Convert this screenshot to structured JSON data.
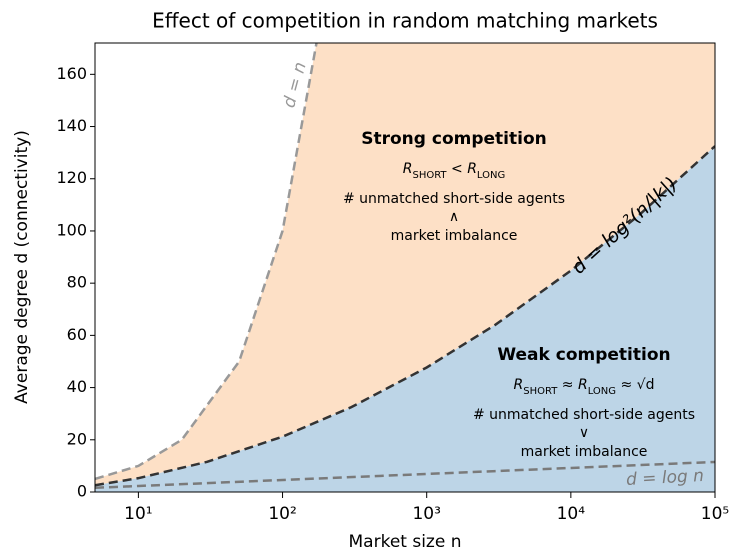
{
  "chart_data": {
    "type": "line",
    "title": "Effect of competition in random matching markets",
    "xlabel": "Market size n",
    "ylabel": "Average degree d (connectivity)",
    "xscale": "log",
    "xlim": [
      5,
      100000
    ],
    "ylim": [
      0,
      172
    ],
    "xticks": [
      {
        "value": 10,
        "label": "10¹"
      },
      {
        "value": 100,
        "label": "10²"
      },
      {
        "value": 1000,
        "label": "10³"
      },
      {
        "value": 10000,
        "label": "10⁴"
      },
      {
        "value": 100000,
        "label": "10⁵"
      }
    ],
    "yticks": [
      0,
      20,
      40,
      60,
      80,
      100,
      120,
      140,
      160
    ],
    "series": [
      {
        "name": "d = n",
        "color": "#999999",
        "fill": "#fde0c6",
        "dashed": true,
        "x": [
          5,
          10,
          20,
          50,
          100,
          172
        ],
        "values": [
          5,
          10,
          20,
          50,
          100,
          172
        ]
      },
      {
        "name": "d = log²(n/|k|)",
        "color": "#333333",
        "fill": "#bdd5e7",
        "dashed": true,
        "x": [
          5,
          10,
          30,
          100,
          300,
          1000,
          3000,
          10000,
          30000,
          100000
        ],
        "values": [
          2.59,
          5.3,
          11.57,
          21.2,
          32.5,
          47.7,
          64.1,
          84.8,
          106.3,
          132.5
        ]
      },
      {
        "name": "d = log n",
        "color": "#7a7a7a",
        "dashed": true,
        "x": [
          5,
          10,
          100,
          1000,
          10000,
          100000
        ],
        "values": [
          1.61,
          2.3,
          4.61,
          6.91,
          9.21,
          11.51
        ]
      }
    ],
    "annotations": [
      {
        "title": "Strong competition",
        "lines": [
          [
            {
              "text": "R"
            },
            {
              "text": "SHORT",
              "sub": true
            },
            {
              "text": " < "
            },
            {
              "text": "R"
            },
            {
              "text": "LONG",
              "sub": true
            }
          ],
          [
            {
              "text": "# unmatched short-side agents"
            }
          ],
          [
            {
              "text": "∧"
            }
          ],
          [
            {
              "text": "market imbalance"
            }
          ]
        ]
      },
      {
        "title": "Weak competition",
        "lines": [
          [
            {
              "text": "R"
            },
            {
              "text": "SHORT",
              "sub": true
            },
            {
              "text": " ≈ "
            },
            {
              "text": "R"
            },
            {
              "text": "LONG",
              "sub": true
            },
            {
              "text": " ≈ √d"
            }
          ],
          [
            {
              "text": "# unmatched short-side agents"
            }
          ],
          [
            {
              "text": "∨"
            }
          ],
          [
            {
              "text": "market imbalance"
            }
          ]
        ]
      }
    ]
  }
}
